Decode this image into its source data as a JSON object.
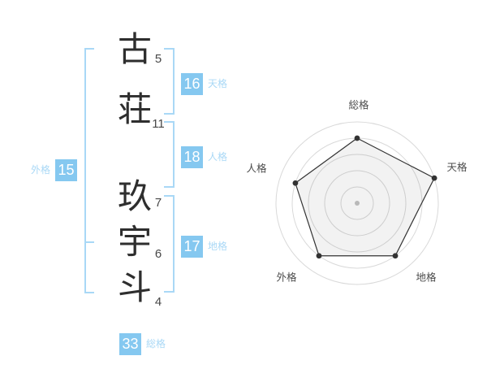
{
  "name": {
    "characters": [
      {
        "char": "古",
        "strokes": "5"
      },
      {
        "char": "荘",
        "strokes": "11"
      },
      {
        "char": "玖",
        "strokes": "7"
      },
      {
        "char": "宇",
        "strokes": "6"
      },
      {
        "char": "斗",
        "strokes": "4"
      }
    ]
  },
  "kaku": {
    "tenkaku": {
      "value": "16",
      "label": "天格"
    },
    "jinkaku": {
      "value": "18",
      "label": "人格"
    },
    "chikaku": {
      "value": "17",
      "label": "地格"
    },
    "gaikaku": {
      "value": "15",
      "label": "外格"
    },
    "soukaku": {
      "value": "33",
      "label": "総格"
    }
  },
  "colors": {
    "badge_blue": "#85c8f0",
    "label_blue": "#a9d8f6",
    "bracket_blue": "#a9d8f6",
    "text_dark": "#2e2e2e",
    "radar_ring": "#d9d9d9",
    "radar_line": "#333333",
    "radar_center_dot": "#c3c3c3"
  },
  "chart_data": {
    "type": "radar",
    "axes": [
      "総格",
      "天格",
      "地格",
      "外格",
      "人格"
    ],
    "values": [
      4,
      5,
      4,
      4,
      4
    ],
    "max": 5,
    "rings": 5,
    "axis_scores": {
      "総格": 33,
      "天格": 16,
      "地格": 17,
      "外格": 15,
      "人格": 18
    },
    "legend": "none",
    "grid": "circular"
  }
}
